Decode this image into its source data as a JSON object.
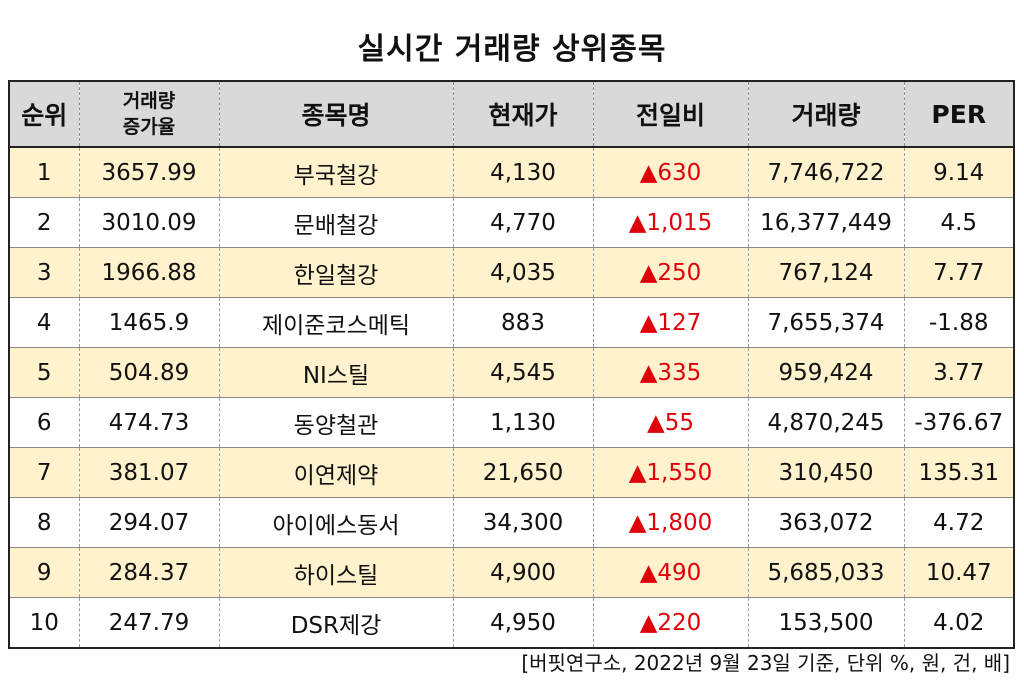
{
  "title": "실시간 거래량 상위종목",
  "columns": {
    "rank": "순위",
    "vol_increase_line1": "거래량",
    "vol_increase_line2": "증가율",
    "name": "종목명",
    "price": "현재가",
    "change": "전일비",
    "volume": "거래량",
    "per": "PER"
  },
  "rows": [
    {
      "rank": "1",
      "increase": "3657.99",
      "name": "부국철강",
      "price": "4,130",
      "change": "▲630",
      "volume": "7,746,722",
      "per": "9.14"
    },
    {
      "rank": "2",
      "increase": "3010.09",
      "name": "문배철강",
      "price": "4,770",
      "change": "▲1,015",
      "volume": "16,377,449",
      "per": "4.5"
    },
    {
      "rank": "3",
      "increase": "1966.88",
      "name": "한일철강",
      "price": "4,035",
      "change": "▲250",
      "volume": "767,124",
      "per": "7.77"
    },
    {
      "rank": "4",
      "increase": "1465.9",
      "name": "제이준코스메틱",
      "price": "883",
      "change": "▲127",
      "volume": "7,655,374",
      "per": "-1.88"
    },
    {
      "rank": "5",
      "increase": "504.89",
      "name": "NI스틸",
      "price": "4,545",
      "change": "▲335",
      "volume": "959,424",
      "per": "3.77"
    },
    {
      "rank": "6",
      "increase": "474.73",
      "name": "동양철관",
      "price": "1,130",
      "change": "▲55",
      "volume": "4,870,245",
      "per": "-376.67"
    },
    {
      "rank": "7",
      "increase": "381.07",
      "name": "이연제약",
      "price": "21,650",
      "change": "▲1,550",
      "volume": "310,450",
      "per": "135.31"
    },
    {
      "rank": "8",
      "increase": "294.07",
      "name": "아이에스동서",
      "price": "34,300",
      "change": "▲1,800",
      "volume": "363,072",
      "per": "4.72"
    },
    {
      "rank": "9",
      "increase": "284.37",
      "name": "하이스틸",
      "price": "4,900",
      "change": "▲490",
      "volume": "5,685,033",
      "per": "10.47"
    },
    {
      "rank": "10",
      "increase": "247.79",
      "name": "DSR제강",
      "price": "4,950",
      "change": "▲220",
      "volume": "153,500",
      "per": "4.02"
    }
  ],
  "footnote": "[버핏연구소, 2022년 9월 23일 기준, 단위 %, 원, 건, 배]",
  "colors": {
    "header_bg": "#d9d9d9",
    "odd_row_bg": "#fff2cc",
    "even_row_bg": "#ffffff",
    "up_change": "#e0000a"
  }
}
